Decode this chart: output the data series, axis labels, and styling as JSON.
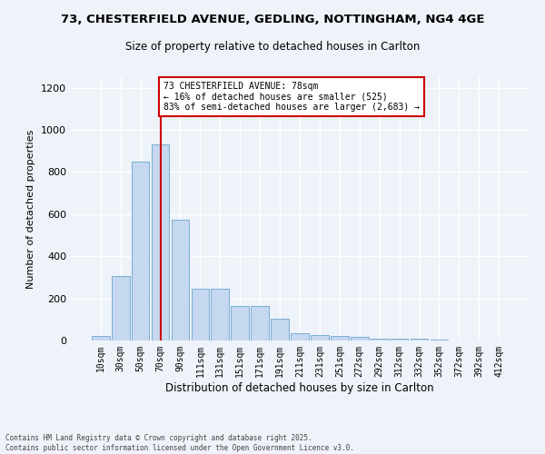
{
  "title_line1": "73, CHESTERFIELD AVENUE, GEDLING, NOTTINGHAM, NG4 4GE",
  "title_line2": "Size of property relative to detached houses in Carlton",
  "xlabel": "Distribution of detached houses by size in Carlton",
  "ylabel": "Number of detached properties",
  "categories": [
    "10sqm",
    "30sqm",
    "50sqm",
    "70sqm",
    "90sqm",
    "111sqm",
    "131sqm",
    "151sqm",
    "171sqm",
    "191sqm",
    "211sqm",
    "231sqm",
    "251sqm",
    "272sqm",
    "292sqm",
    "312sqm",
    "332sqm",
    "352sqm",
    "372sqm",
    "392sqm",
    "412sqm"
  ],
  "values": [
    20,
    305,
    850,
    930,
    575,
    245,
    245,
    165,
    165,
    105,
    35,
    25,
    22,
    18,
    10,
    8,
    7,
    4,
    2,
    1,
    0
  ],
  "bar_color": "#c5d8f0",
  "bar_edge_color": "#7aadd4",
  "property_label": "73 CHESTERFIELD AVENUE: 78sqm",
  "annotation_line2": "← 16% of detached houses are smaller (525)",
  "annotation_line3": "83% of semi-detached houses are larger (2,683) →",
  "vline_color": "#cc0000",
  "vline_position": 3,
  "annotation_box_color": "#cc0000",
  "ylim": [
    0,
    1250
  ],
  "yticks": [
    0,
    200,
    400,
    600,
    800,
    1000,
    1200
  ],
  "background_color": "#eef2f9",
  "grid_color": "#ffffff",
  "footer_line1": "Contains HM Land Registry data © Crown copyright and database right 2025.",
  "footer_line2": "Contains public sector information licensed under the Open Government Licence v3.0."
}
